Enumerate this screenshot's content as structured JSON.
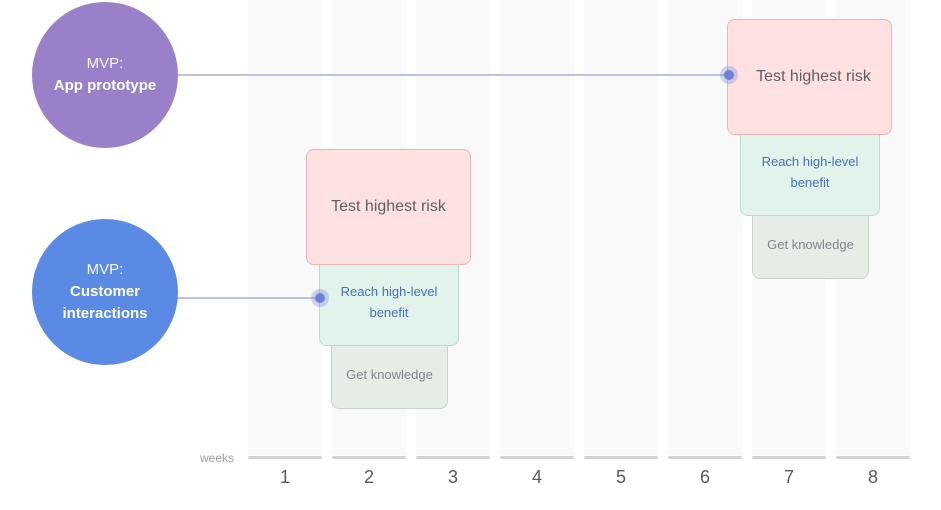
{
  "timeline": {
    "unit_label": "weeks",
    "weeks": [
      "1",
      "2",
      "3",
      "4",
      "5",
      "6",
      "7",
      "8"
    ]
  },
  "mvps": [
    {
      "tag": "MVP:",
      "name": "App prototype",
      "color": "#9a80c9",
      "start_week": 6
    },
    {
      "tag": "MVP:",
      "name": "Customer interactions",
      "color": "#5a8ae3",
      "start_week": 2
    }
  ],
  "goals": {
    "risk": "Test highest risk",
    "benefit": "Reach high-level benefit",
    "knowledge": "Get knowledge"
  },
  "colors": {
    "risk": "#ffe1e1",
    "benefit": "#e1f3ea",
    "knowledge": "#e6ece6"
  }
}
